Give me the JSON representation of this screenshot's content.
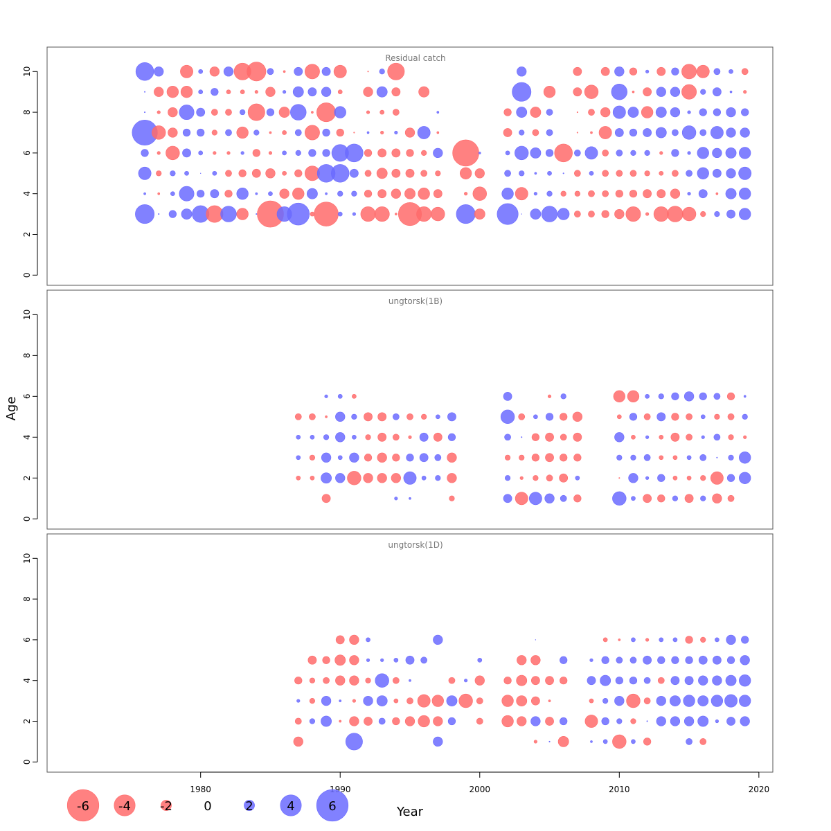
{
  "chart_data": {
    "type": "bubble",
    "xlabel": "Year",
    "ylabel": "Age",
    "xlim": [
      1969,
      2021
    ],
    "ylim": [
      -0.5,
      11.2
    ],
    "x_ticks": [
      1980,
      1990,
      2000,
      2010,
      2020
    ],
    "y_ticks": [
      0,
      2,
      4,
      6,
      8,
      10
    ],
    "colors": {
      "negative": "#ff6b6b",
      "positive": "#6b6bff",
      "text": "#000000"
    },
    "legend": {
      "items": [
        {
          "label": "-6",
          "value": -6
        },
        {
          "label": "-4",
          "value": -4
        },
        {
          "label": "-2",
          "value": -2
        },
        {
          "label": "0",
          "value": 0
        },
        {
          "label": "2",
          "value": 2
        },
        {
          "label": "4",
          "value": 4
        },
        {
          "label": "6",
          "value": 6
        }
      ]
    },
    "panels": [
      {
        "title": "Residual catch",
        "ages": [
          3,
          4,
          5,
          6,
          7,
          8,
          9,
          10
        ],
        "years": [
          1976,
          1977,
          1978,
          1979,
          1980,
          1981,
          1982,
          1983,
          1984,
          1985,
          1986,
          1987,
          1988,
          1989,
          1990,
          1991,
          1992,
          1993,
          1994,
          1995,
          1996,
          1997,
          1999,
          2000,
          2002,
          2003,
          2004,
          2005,
          2006,
          2007,
          2008,
          2009,
          2010,
          2011,
          2012,
          2013,
          2014,
          2015,
          2016,
          2017,
          2018,
          2019
        ],
        "residuals": [
          [
            3.6,
            0.2,
            1.4,
            2.0,
            3.2,
            -3.2,
            3.0,
            -2.2,
            0.2,
            -5.0,
            2.8,
            4.2,
            -0.8,
            -4.6,
            0.8,
            0.6,
            -2.8,
            -2.8,
            -0.4,
            -4.4,
            -2.8,
            -2.6,
            3.6,
            -2.0,
            4.0,
            0.1,
            2.0,
            3.0,
            2.2,
            -1.2,
            -1.2,
            -1.4,
            -1.8,
            -2.8,
            -0.6,
            -2.8,
            -3.0,
            -2.6,
            -1.0,
            1.0,
            1.6,
            2.2
          ],
          [
            0.4,
            -0.4,
            0.8,
            2.8,
            1.4,
            1.6,
            -1.4,
            2.2,
            0.4,
            0.8,
            -1.8,
            -2.2,
            2.0,
            0.4,
            1.0,
            1.0,
            -1.4,
            -1.6,
            -1.8,
            -2.0,
            -2.2,
            -1.6,
            -0.6,
            -2.6,
            2.2,
            -2.4,
            0.6,
            1.0,
            -1.0,
            -1.0,
            -1.2,
            -1.2,
            -1.4,
            -1.4,
            -1.6,
            -1.6,
            -1.8,
            0.6,
            1.6,
            -0.4,
            2.0,
            2.2
          ],
          [
            2.4,
            -1.0,
            1.0,
            0.8,
            0.1,
            0.8,
            -1.2,
            -1.4,
            -1.6,
            -1.8,
            -0.8,
            -1.4,
            -2.8,
            3.4,
            3.4,
            1.6,
            -1.2,
            -2.0,
            -1.6,
            -1.6,
            -1.2,
            -1.0,
            -2.2,
            -1.8,
            1.2,
            1.0,
            0.4,
            0.8,
            0.2,
            -1.2,
            0.8,
            -1.2,
            -1.2,
            -1.2,
            -1.0,
            -0.8,
            -1.2,
            1.2,
            2.2,
            1.6,
            1.8,
            2.4
          ],
          [
            1.4,
            -0.6,
            -2.6,
            1.6,
            0.8,
            -0.6,
            -0.6,
            0.6,
            -1.4,
            -0.6,
            0.8,
            1.0,
            1.4,
            1.4,
            3.2,
            3.4,
            -1.4,
            -1.6,
            -1.6,
            -1.4,
            -1.0,
            1.8,
            -5.0,
            0.4,
            0.8,
            2.6,
            2.0,
            1.4,
            -3.4,
            1.2,
            2.4,
            -1.2,
            1.2,
            1.0,
            1.0,
            -0.6,
            1.4,
            0.6,
            2.2,
            1.8,
            2.0,
            2.2
          ],
          [
            4.8,
            -2.6,
            -1.8,
            1.4,
            1.4,
            -1.0,
            1.2,
            -2.2,
            1.0,
            -0.4,
            -0.8,
            1.2,
            -2.8,
            1.4,
            -1.4,
            -0.2,
            0.4,
            -0.6,
            0.6,
            -1.8,
            2.4,
            -0.4,
            null,
            null,
            -1.6,
            1.0,
            -1.2,
            1.2,
            null,
            -0.2,
            -0.4,
            -2.4,
            1.6,
            1.4,
            1.6,
            2.0,
            1.2,
            2.6,
            1.2,
            2.4,
            1.8,
            1.8
          ],
          [
            0.2,
            -0.6,
            -1.8,
            2.8,
            1.6,
            -1.2,
            -1.2,
            1.0,
            -3.2,
            1.4,
            -2.0,
            3.0,
            -0.4,
            -3.6,
            2.2,
            null,
            -0.6,
            -0.8,
            -1.2,
            null,
            null,
            0.4,
            null,
            null,
            -1.4,
            2.0,
            -2.0,
            1.2,
            null,
            -0.2,
            -1.2,
            -1.8,
            2.4,
            2.0,
            -2.2,
            2.0,
            1.8,
            0.6,
            1.4,
            1.4,
            1.8,
            1.4
          ],
          [
            0.2,
            -1.8,
            -2.2,
            -2.2,
            0.8,
            1.4,
            -0.8,
            -0.8,
            -0.6,
            -1.8,
            0.6,
            2.0,
            1.6,
            1.8,
            -0.8,
            null,
            -1.8,
            2.0,
            -1.6,
            null,
            -2.0,
            null,
            null,
            null,
            null,
            3.6,
            null,
            -2.2,
            null,
            -1.6,
            -2.6,
            null,
            3.0,
            -0.4,
            -1.6,
            1.8,
            1.8,
            -2.8,
            1.0,
            1.6,
            0.4,
            -0.6
          ],
          [
            3.4,
            1.8,
            null,
            -2.4,
            0.8,
            -1.8,
            1.8,
            -3.2,
            -3.6,
            1.2,
            -0.4,
            1.6,
            -2.8,
            1.6,
            -2.4,
            null,
            -0.2,
            1.0,
            -3.2,
            null,
            null,
            null,
            null,
            null,
            null,
            1.8,
            null,
            null,
            null,
            -1.6,
            null,
            -1.6,
            1.8,
            -1.4,
            0.6,
            -1.6,
            1.4,
            -2.8,
            -2.4,
            1.2,
            0.8,
            -1.2
          ]
        ]
      },
      {
        "title": "ungtorsk(1B)",
        "ages": [
          1,
          2,
          3,
          4,
          5,
          6
        ],
        "years": [
          1987,
          1988,
          1989,
          1990,
          1991,
          1992,
          1993,
          1994,
          1995,
          1996,
          1997,
          1998,
          2002,
          2003,
          2004,
          2005,
          2006,
          2007,
          2010,
          2011,
          2012,
          2013,
          2014,
          2015,
          2016,
          2017,
          2018,
          2019
        ],
        "residuals": [
          [
            null,
            null,
            -1.6,
            null,
            null,
            null,
            null,
            0.6,
            0.4,
            null,
            null,
            -1.0,
            1.6,
            -2.4,
            2.4,
            1.8,
            1.2,
            -1.4,
            2.6,
            0.8,
            -1.6,
            -1.4,
            1.0,
            -1.6,
            1.0,
            -1.8,
            -1.2,
            null
          ],
          [
            -0.8,
            -0.8,
            2.0,
            1.8,
            -2.6,
            -1.8,
            -1.8,
            -1.8,
            2.4,
            0.8,
            1.0,
            -1.8,
            1.0,
            -0.6,
            -1.0,
            -1.2,
            -1.6,
            0.8,
            -0.2,
            1.8,
            0.6,
            1.4,
            -0.8,
            -0.8,
            -1.0,
            -2.4,
            1.4,
            2.2
          ],
          [
            0.8,
            -1.0,
            1.8,
            0.8,
            1.8,
            -1.4,
            -1.8,
            -1.4,
            1.4,
            1.6,
            1.2,
            -1.8,
            -1.0,
            -1.0,
            -1.4,
            -1.6,
            -1.4,
            -1.4,
            1.0,
            1.0,
            1.2,
            -0.8,
            -0.8,
            0.8,
            1.2,
            0.2,
            1.0,
            2.2
          ],
          [
            0.8,
            0.8,
            1.0,
            1.8,
            0.8,
            -1.0,
            -1.6,
            -1.2,
            -0.6,
            1.6,
            -1.6,
            1.4,
            1.2,
            0.2,
            -1.4,
            -1.6,
            -1.2,
            -1.6,
            1.8,
            -0.8,
            0.6,
            -0.8,
            -1.6,
            -1.2,
            0.6,
            1.2,
            -1.0,
            -0.6
          ],
          [
            -1.2,
            -1.2,
            -0.4,
            1.8,
            1.0,
            -1.6,
            -1.6,
            1.2,
            -1.2,
            -1.0,
            0.8,
            1.6,
            2.6,
            -1.2,
            0.8,
            1.4,
            -1.4,
            -1.8,
            -0.8,
            1.4,
            -1.2,
            1.6,
            -1.4,
            -1.2,
            0.8,
            -1.0,
            -1.2,
            1.0
          ],
          [
            null,
            null,
            0.6,
            0.8,
            -0.8,
            null,
            null,
            null,
            null,
            null,
            null,
            null,
            1.6,
            null,
            null,
            -0.6,
            1.0,
            null,
            -2.2,
            -2.2,
            0.8,
            1.0,
            1.4,
            1.8,
            1.4,
            1.2,
            -1.4,
            0.4
          ]
        ]
      },
      {
        "title": "ungtorsk(1D)",
        "ages": [
          1,
          2,
          3,
          4,
          5,
          6
        ],
        "years": [
          1987,
          1988,
          1989,
          1990,
          1991,
          1992,
          1993,
          1994,
          1995,
          1996,
          1997,
          1998,
          1999,
          2000,
          2002,
          2003,
          2004,
          2005,
          2006,
          2008,
          2009,
          2010,
          2011,
          2012,
          2013,
          2014,
          2015,
          2016,
          2017,
          2018,
          2019
        ],
        "residuals": [
          [
            -1.8,
            null,
            null,
            null,
            3.2,
            null,
            null,
            null,
            null,
            null,
            1.8,
            null,
            null,
            null,
            null,
            null,
            -0.6,
            0.2,
            -2.0,
            0.4,
            0.8,
            -2.6,
            0.8,
            -1.4,
            null,
            null,
            1.2,
            -1.2,
            null,
            null,
            null
          ],
          [
            -1.2,
            1.0,
            2.0,
            -0.4,
            -1.8,
            -1.6,
            1.2,
            -1.4,
            -1.8,
            -2.2,
            -1.8,
            1.4,
            null,
            -1.2,
            -2.2,
            -1.8,
            1.8,
            -1.6,
            1.4,
            -2.4,
            1.4,
            1.0,
            -1.0,
            0.2,
            1.8,
            1.8,
            1.8,
            2.0,
            0.6,
            1.6,
            1.8
          ],
          [
            0.6,
            -1.0,
            1.8,
            0.4,
            -0.6,
            1.8,
            2.0,
            -0.8,
            -1.2,
            -2.4,
            -2.2,
            2.0,
            -2.6,
            -1.2,
            -2.2,
            -2.0,
            -1.6,
            -0.4,
            null,
            -0.8,
            1.0,
            1.8,
            -2.6,
            -1.2,
            1.8,
            2.0,
            2.2,
            2.0,
            2.2,
            2.4,
            2.2
          ],
          [
            -1.4,
            -1.0,
            -1.2,
            -1.8,
            -1.8,
            -1.0,
            2.6,
            -1.2,
            0.4,
            null,
            null,
            -1.2,
            0.6,
            -1.8,
            -1.4,
            -2.0,
            -1.6,
            -1.6,
            -1.4,
            1.6,
            2.0,
            1.4,
            1.4,
            1.2,
            -1.2,
            1.6,
            1.6,
            1.8,
            1.8,
            2.0,
            2.2
          ],
          [
            null,
            -1.6,
            -1.4,
            -2.0,
            -1.8,
            0.6,
            0.6,
            0.8,
            1.6,
            1.2,
            null,
            null,
            null,
            0.8,
            null,
            -1.8,
            -1.8,
            null,
            1.4,
            0.6,
            1.4,
            1.2,
            1.2,
            1.6,
            1.4,
            1.4,
            1.4,
            1.6,
            1.6,
            1.4,
            1.8
          ],
          [
            null,
            null,
            null,
            -1.6,
            -1.8,
            0.8,
            null,
            null,
            null,
            null,
            1.8,
            null,
            null,
            null,
            null,
            null,
            0.1,
            null,
            null,
            null,
            -0.8,
            -0.4,
            0.8,
            -0.6,
            0.8,
            0.8,
            -1.4,
            -1.0,
            0.8,
            1.8,
            1.4
          ]
        ]
      }
    ]
  }
}
